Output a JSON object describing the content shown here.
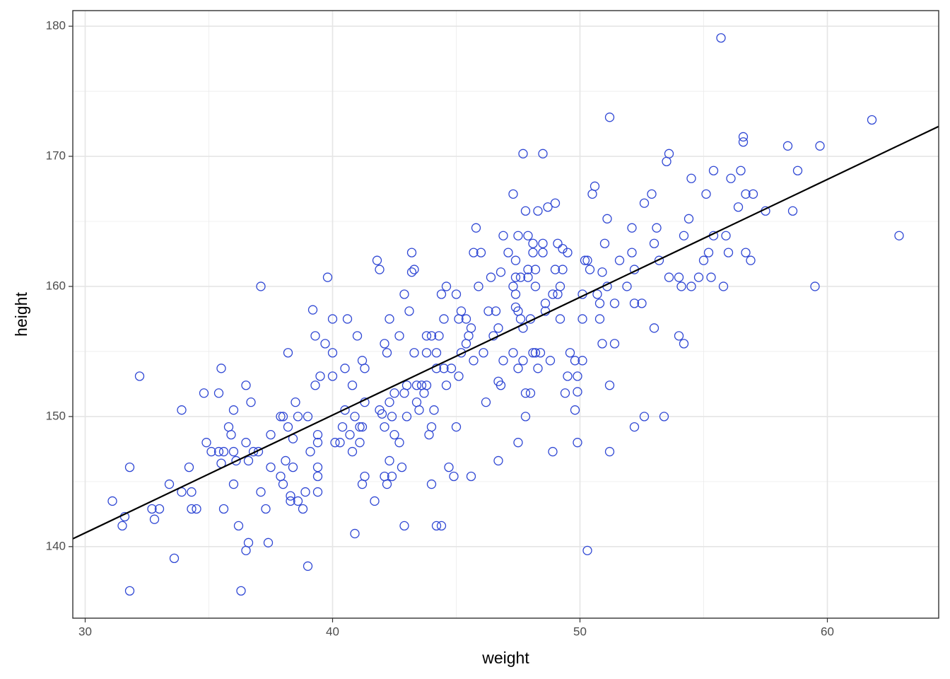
{
  "chart_data": {
    "type": "scatter",
    "x_label": "weight",
    "y_label": "height",
    "xlim": [
      29.5,
      64.5
    ],
    "ylim": [
      134.5,
      181.2
    ],
    "xticks": [
      30,
      40,
      50,
      60
    ],
    "yticks": [
      140,
      150,
      160,
      170,
      180
    ],
    "xminorticks": [
      35,
      45,
      55
    ],
    "yminorticks": [
      145,
      155,
      165,
      175
    ],
    "grid": true,
    "line": {
      "x": [
        29.5,
        64.5
      ],
      "y": [
        140.6,
        172.3
      ],
      "color": "#000000"
    },
    "series": [
      {
        "color": "#2f47d4",
        "x": [
          31.1,
          31.6,
          31.5,
          31.8,
          31.8,
          32.2,
          32.7,
          32.8,
          33.0,
          33.4,
          33.6,
          33.9,
          33.9,
          34.2,
          34.3,
          34.3,
          34.5,
          34.8,
          34.9,
          35.1,
          35.4,
          35.4,
          35.5,
          35.5,
          35.6,
          35.6,
          35.8,
          35.9,
          36.0,
          36.0,
          36.0,
          36.1,
          36.2,
          36.3,
          36.5,
          36.5,
          36.5,
          36.6,
          36.6,
          36.7,
          36.8,
          37.0,
          37.1,
          37.1,
          37.3,
          37.4,
          37.5,
          37.5,
          37.9,
          37.9,
          38.0,
          38.0,
          38.1,
          38.2,
          38.2,
          38.3,
          38.3,
          38.4,
          38.4,
          38.5,
          38.6,
          38.6,
          38.8,
          38.9,
          39.0,
          39.0,
          39.1,
          39.2,
          39.3,
          39.3,
          39.4,
          39.4,
          39.4,
          39.4,
          39.4,
          39.5,
          39.7,
          39.8,
          40.0,
          40.0,
          40.0,
          40.1,
          40.3,
          40.4,
          40.5,
          40.5,
          40.6,
          40.7,
          40.8,
          40.8,
          40.9,
          40.9,
          41.0,
          41.1,
          41.1,
          41.2,
          41.2,
          41.3,
          41.3,
          41.3,
          41.2,
          41.7,
          41.8,
          41.9,
          41.9,
          42.0,
          42.1,
          42.1,
          42.1,
          42.2,
          42.2,
          42.3,
          42.3,
          42.3,
          42.4,
          42.4,
          42.5,
          42.5,
          42.7,
          42.7,
          42.8,
          42.9,
          42.9,
          42.9,
          43.0,
          43.0,
          43.1,
          43.2,
          43.2,
          43.3,
          43.3,
          43.4,
          43.4,
          43.5,
          43.6,
          43.7,
          43.8,
          43.8,
          43.8,
          43.9,
          44.0,
          44.0,
          44.0,
          44.1,
          44.2,
          44.2,
          44.2,
          44.3,
          44.4,
          44.4,
          44.5,
          44.6,
          44.6,
          44.5,
          44.7,
          44.8,
          45.0,
          44.9,
          45.0,
          45.1,
          45.1,
          45.2,
          45.2,
          45.4,
          45.4,
          45.5,
          45.6,
          45.6,
          45.7,
          45.7,
          45.8,
          45.9,
          46.0,
          46.1,
          46.2,
          46.3,
          46.4,
          46.5,
          46.6,
          46.7,
          46.7,
          46.7,
          46.8,
          46.8,
          46.9,
          46.9,
          47.1,
          47.3,
          47.3,
          47.3,
          47.4,
          47.4,
          47.4,
          47.4,
          47.5,
          47.5,
          47.5,
          47.5,
          47.6,
          47.6,
          47.7,
          47.7,
          47.7,
          47.8,
          47.8,
          47.8,
          47.9,
          47.9,
          48.0,
          47.9,
          48.0,
          48.1,
          48.1,
          48.2,
          48.1,
          48.2,
          48.2,
          48.3,
          48.3,
          48.4,
          48.5,
          48.5,
          48.5,
          48.6,
          48.6,
          48.7,
          48.8,
          48.9,
          48.9,
          49.0,
          49.0,
          49.1,
          49.1,
          49.2,
          49.2,
          49.3,
          49.3,
          49.4,
          49.5,
          49.5,
          49.6,
          49.8,
          49.8,
          49.9,
          49.9,
          49.9,
          50.1,
          50.1,
          50.1,
          50.2,
          50.3,
          50.3,
          50.4,
          50.5,
          50.6,
          50.7,
          50.8,
          50.8,
          50.9,
          50.9,
          51.0,
          51.1,
          51.1,
          51.2,
          51.2,
          51.2,
          51.4,
          51.4,
          51.6,
          51.9,
          52.1,
          52.1,
          52.2,
          52.2,
          52.2,
          52.5,
          52.6,
          52.6,
          52.9,
          53.0,
          53.0,
          53.1,
          53.2,
          53.4,
          53.5,
          53.6,
          53.6,
          54.0,
          54.0,
          54.1,
          54.2,
          54.2,
          54.4,
          54.5,
          54.5,
          54.8,
          55.0,
          55.1,
          55.2,
          55.3,
          55.4,
          55.4,
          55.7,
          55.8,
          55.9,
          56.0,
          56.1,
          56.4,
          56.5,
          56.6,
          56.6,
          56.7,
          56.7,
          56.9,
          57.0,
          57.5,
          58.4,
          58.6,
          58.8,
          59.5,
          59.7,
          61.8,
          62.9
        ],
        "y": [
          143.5,
          142.3,
          141.6,
          146.1,
          136.6,
          153.1,
          142.9,
          142.1,
          142.9,
          144.8,
          139.1,
          150.5,
          144.2,
          146.1,
          144.2,
          142.9,
          142.9,
          151.8,
          148.0,
          147.3,
          151.8,
          147.3,
          153.7,
          146.4,
          147.3,
          142.9,
          149.2,
          148.6,
          150.5,
          147.3,
          144.8,
          146.6,
          141.6,
          136.6,
          152.4,
          148.0,
          139.7,
          146.6,
          140.3,
          151.1,
          147.3,
          147.3,
          160.0,
          144.2,
          142.9,
          140.3,
          146.1,
          148.6,
          150.0,
          145.4,
          144.8,
          150.0,
          146.6,
          154.9,
          149.2,
          143.9,
          143.5,
          148.3,
          146.1,
          151.1,
          143.5,
          150.0,
          142.9,
          144.2,
          150.0,
          138.5,
          147.3,
          158.2,
          156.2,
          152.4,
          148.0,
          148.6,
          146.1,
          145.4,
          144.2,
          153.1,
          155.6,
          160.7,
          154.9,
          157.5,
          153.1,
          148.0,
          148.0,
          149.2,
          150.5,
          153.7,
          157.5,
          148.6,
          152.4,
          147.3,
          141.0,
          150.0,
          156.2,
          149.2,
          148.0,
          144.8,
          154.3,
          151.1,
          145.4,
          153.7,
          149.2,
          143.5,
          162.0,
          161.3,
          150.5,
          150.2,
          155.6,
          149.2,
          145.4,
          154.9,
          144.8,
          157.5,
          151.1,
          146.6,
          150.0,
          145.4,
          151.8,
          148.6,
          156.2,
          148.0,
          146.1,
          141.6,
          151.8,
          159.4,
          150.0,
          152.4,
          158.1,
          161.1,
          162.6,
          161.3,
          154.9,
          151.1,
          152.4,
          150.5,
          152.4,
          151.8,
          152.4,
          154.9,
          156.2,
          148.6,
          149.2,
          144.8,
          156.2,
          150.5,
          154.9,
          153.7,
          141.6,
          156.2,
          141.6,
          159.4,
          153.7,
          160.0,
          152.4,
          157.5,
          146.1,
          153.7,
          159.4,
          145.4,
          149.2,
          157.5,
          153.1,
          158.1,
          154.9,
          155.6,
          157.5,
          156.2,
          156.8,
          145.4,
          162.6,
          154.3,
          164.5,
          160.0,
          162.6,
          154.9,
          151.1,
          158.1,
          160.7,
          156.2,
          158.1,
          146.6,
          156.8,
          152.7,
          152.4,
          161.1,
          163.9,
          154.3,
          162.6,
          167.1,
          154.9,
          160.0,
          159.4,
          160.7,
          162.0,
          158.4,
          148.0,
          153.7,
          158.1,
          163.9,
          160.7,
          157.5,
          170.2,
          156.8,
          154.3,
          165.8,
          150.0,
          151.8,
          161.3,
          160.7,
          157.5,
          163.9,
          151.8,
          163.3,
          162.6,
          160.0,
          154.9,
          161.3,
          154.9,
          153.7,
          165.8,
          154.9,
          162.6,
          163.3,
          170.2,
          158.1,
          158.7,
          166.1,
          154.3,
          159.4,
          147.3,
          166.4,
          161.3,
          159.4,
          163.3,
          157.5,
          160.0,
          161.3,
          162.9,
          151.8,
          162.6,
          153.1,
          154.9,
          150.5,
          154.3,
          153.1,
          148.0,
          151.9,
          159.4,
          154.3,
          157.5,
          162.0,
          162.0,
          139.7,
          161.3,
          167.1,
          167.7,
          159.4,
          157.5,
          158.7,
          155.6,
          161.1,
          163.3,
          160.0,
          165.2,
          152.4,
          147.3,
          173.0,
          155.6,
          158.7,
          162.0,
          160.0,
          164.5,
          162.6,
          161.3,
          158.7,
          149.2,
          158.7,
          166.4,
          150.0,
          167.1,
          156.8,
          163.3,
          164.5,
          162.0,
          150.0,
          169.6,
          170.2,
          160.7,
          156.2,
          160.7,
          160.0,
          155.6,
          163.9,
          165.2,
          168.3,
          160.0,
          160.7,
          162.0,
          167.1,
          162.6,
          160.7,
          163.9,
          168.9,
          179.1,
          160.0,
          163.9,
          162.6,
          168.3,
          166.1,
          168.9,
          171.5,
          171.1,
          162.6,
          167.1,
          162.0,
          167.1,
          165.8,
          170.8,
          165.8,
          168.9,
          160.0,
          170.8,
          172.8,
          163.9
        ]
      }
    ]
  }
}
